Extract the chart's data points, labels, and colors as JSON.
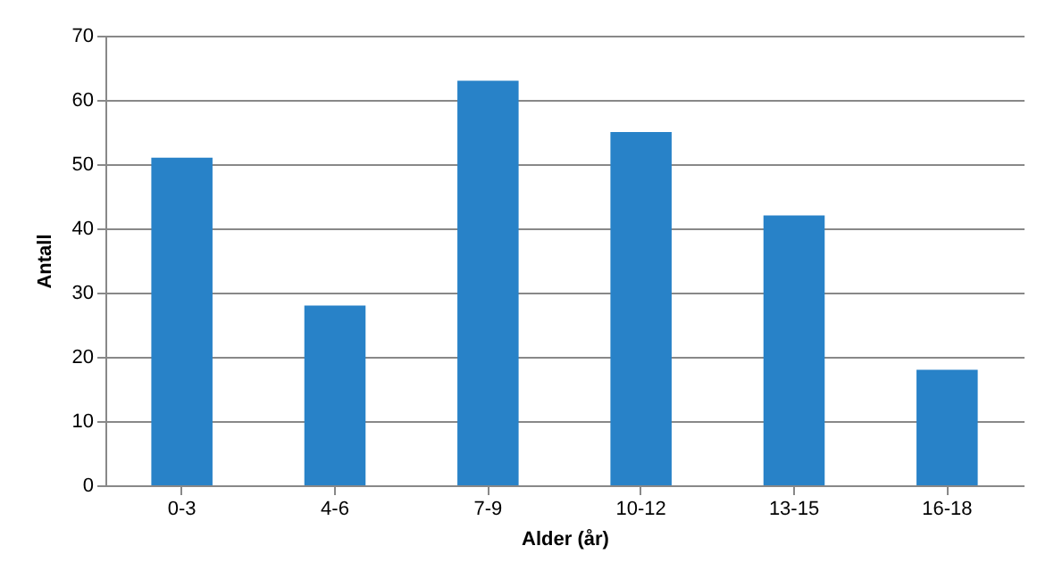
{
  "chart_data": {
    "type": "bar",
    "xlabel": "Alder (år)",
    "ylabel": "Antall",
    "categories": [
      "0-3",
      "4-6",
      "7-9",
      "10-12",
      "13-15",
      "16-18"
    ],
    "values": [
      51,
      28,
      63,
      55,
      42,
      18
    ],
    "color": "#2882c8",
    "ylim": [
      0,
      70
    ],
    "yticks": [
      0,
      10,
      20,
      30,
      40,
      50,
      60,
      70
    ],
    "grid": "y"
  }
}
